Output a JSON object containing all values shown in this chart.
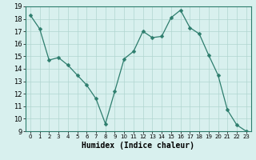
{
  "x": [
    0,
    1,
    2,
    3,
    4,
    5,
    6,
    7,
    8,
    9,
    10,
    11,
    12,
    13,
    14,
    15,
    16,
    17,
    18,
    19,
    20,
    21,
    22,
    23
  ],
  "y": [
    18.3,
    17.2,
    14.7,
    14.9,
    14.3,
    13.5,
    12.7,
    11.6,
    9.6,
    12.2,
    14.8,
    15.4,
    17.0,
    16.5,
    16.6,
    18.1,
    18.7,
    17.3,
    16.8,
    15.1,
    13.5,
    10.7,
    9.5,
    9.0
  ],
  "xlabel": "Humidex (Indice chaleur)",
  "ylim": [
    9,
    19
  ],
  "xlim": [
    -0.5,
    23.5
  ],
  "yticks": [
    9,
    10,
    11,
    12,
    13,
    14,
    15,
    16,
    17,
    18,
    19
  ],
  "xtick_labels": [
    "0",
    "1",
    "2",
    "3",
    "4",
    "5",
    "6",
    "7",
    "8",
    "9",
    "10",
    "11",
    "12",
    "13",
    "14",
    "15",
    "16",
    "17",
    "18",
    "19",
    "20",
    "21",
    "22",
    "23"
  ],
  "line_color": "#2d7d6d",
  "marker_size": 2.5,
  "bg_color": "#d8f0ee",
  "grid_color": "#b0d5d0",
  "axes_bg": "#d8f0ee",
  "spine_color": "#2d7d6d",
  "xlabel_fontsize": 7,
  "ytick_fontsize": 6,
  "xtick_fontsize": 5
}
